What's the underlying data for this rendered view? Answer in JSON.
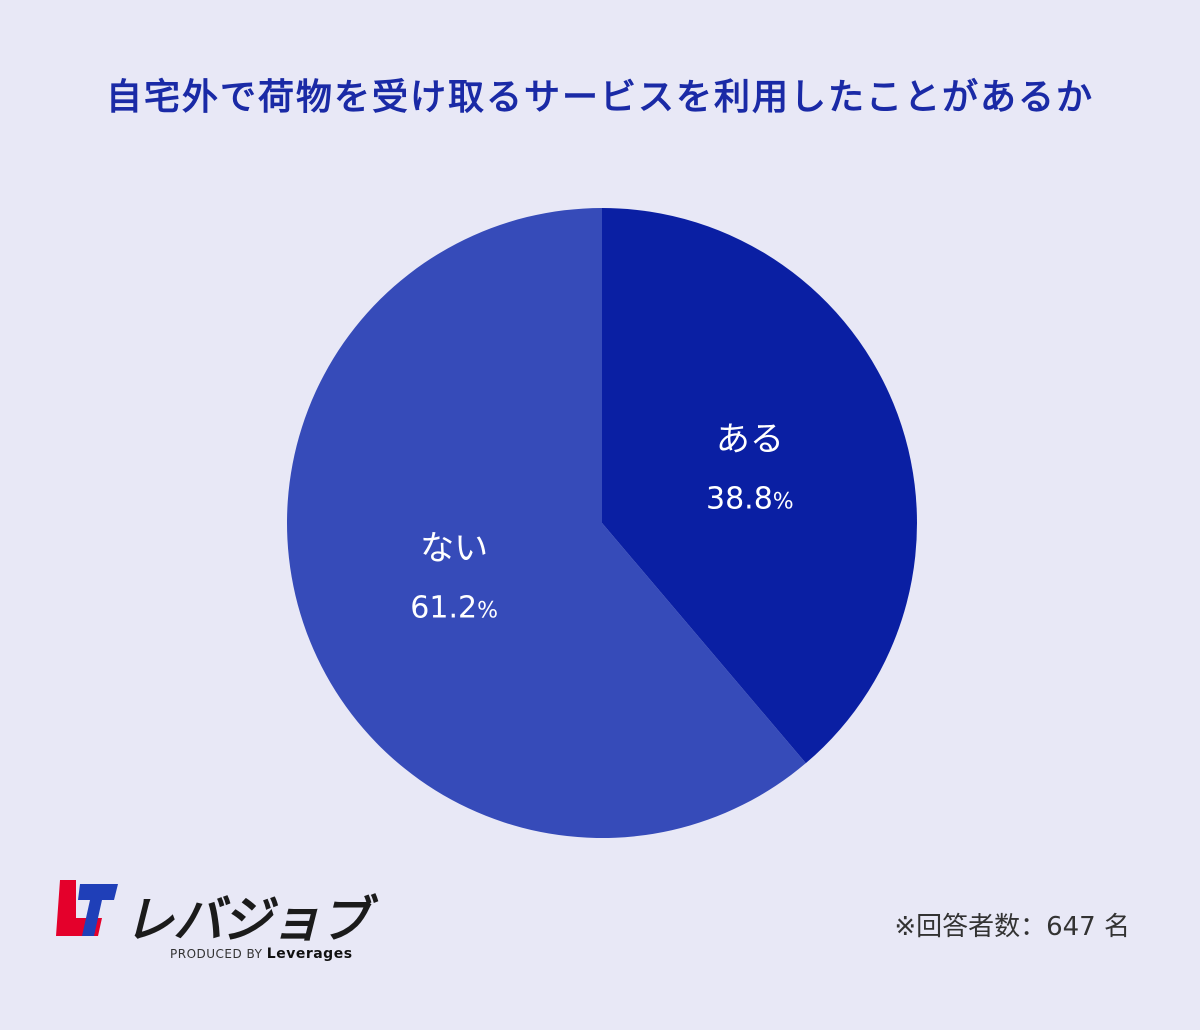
{
  "chart_data": {
    "type": "pie",
    "title": "自宅外で荷物を受け取るサービスを利用したことがあるか",
    "slices": [
      {
        "label": "ある",
        "value": 38.8,
        "value_text": "38.8",
        "unit": "%",
        "color": "#0a1fa3"
      },
      {
        "label": "ない",
        "value": 61.2,
        "value_text": "61.2",
        "unit": "%",
        "color": "#364bb9"
      }
    ],
    "start": "top",
    "direction": "clockwise",
    "legend": "none"
  },
  "note": "※回答者数：647 名",
  "logo": {
    "name": "レバジョブ",
    "produced_by": "PRODUCED BY",
    "company": "Leverages"
  },
  "colors": {
    "background": "#e8e8f6",
    "title": "#1a2aa6",
    "logo_red": "#e4002b",
    "logo_blue": "#1f3fb8"
  }
}
